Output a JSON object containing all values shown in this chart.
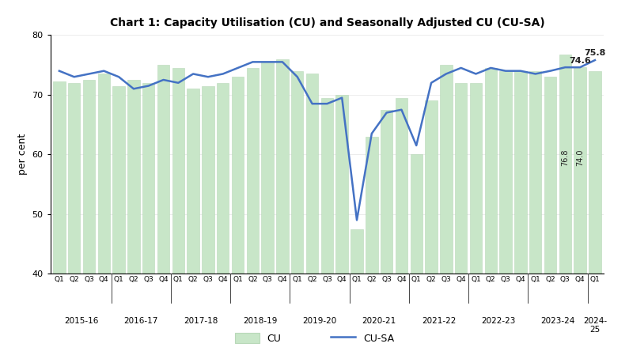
{
  "title": "Chart 1: Capacity Utilisation (CU) and Seasonally Adjusted CU (CU-SA)",
  "ylabel": "per cent",
  "ylim": [
    40,
    80
  ],
  "yticks": [
    40,
    50,
    60,
    70,
    80
  ],
  "bar_color": "#c8e6c8",
  "bar_edge_color": "#b8d8b8",
  "line_color": "#4472c4",
  "line_width": 1.8,
  "background_color": "#ffffff",
  "categories": [
    "Q1",
    "Q2",
    "Q3",
    "Q4",
    "Q1",
    "Q2",
    "Q3",
    "Q4",
    "Q1",
    "Q2",
    "Q3",
    "Q4",
    "Q1",
    "Q2",
    "Q3",
    "Q4",
    "Q1",
    "Q2",
    "Q3",
    "Q4",
    "Q1",
    "Q2",
    "Q3",
    "Q4",
    "Q1",
    "Q2",
    "Q3",
    "Q4",
    "Q1",
    "Q2",
    "Q3",
    "Q4",
    "Q1",
    "Q2",
    "Q3",
    "Q4",
    "Q1"
  ],
  "year_groups": [
    {
      "label": "2015-16",
      "start": 0,
      "end": 3
    },
    {
      "label": "2016-17",
      "start": 4,
      "end": 7
    },
    {
      "label": "2017-18",
      "start": 8,
      "end": 11
    },
    {
      "label": "2018-19",
      "start": 12,
      "end": 15
    },
    {
      "label": "2019-20",
      "start": 16,
      "end": 19
    },
    {
      "label": "2020-21",
      "start": 20,
      "end": 23
    },
    {
      "label": "2021-22",
      "start": 24,
      "end": 27
    },
    {
      "label": "2022-23",
      "start": 28,
      "end": 31
    },
    {
      "label": "2023-24",
      "start": 32,
      "end": 35
    },
    {
      "label": "2024-\n25",
      "start": 36,
      "end": 36
    }
  ],
  "cu_values": [
    72.2,
    72.0,
    72.5,
    73.5,
    71.5,
    72.5,
    72.0,
    75.0,
    74.5,
    71.0,
    71.5,
    72.0,
    73.0,
    74.5,
    75.5,
    76.0,
    74.0,
    73.5,
    69.5,
    70.0,
    47.5,
    63.0,
    67.5,
    69.5,
    60.0,
    69.0,
    75.0,
    72.0,
    72.0,
    74.5,
    74.0,
    74.0,
    74.0,
    73.0,
    76.8,
    74.6,
    74.0
  ],
  "cu_sa_values": [
    74.0,
    73.0,
    73.5,
    74.0,
    73.0,
    71.0,
    71.5,
    72.5,
    72.0,
    73.5,
    73.0,
    73.5,
    74.5,
    75.5,
    75.5,
    75.5,
    73.0,
    68.5,
    68.5,
    69.5,
    49.0,
    63.5,
    67.0,
    67.5,
    61.5,
    72.0,
    73.5,
    74.5,
    73.5,
    74.5,
    74.0,
    74.0,
    73.5,
    74.0,
    74.6,
    74.6,
    75.8
  ]
}
